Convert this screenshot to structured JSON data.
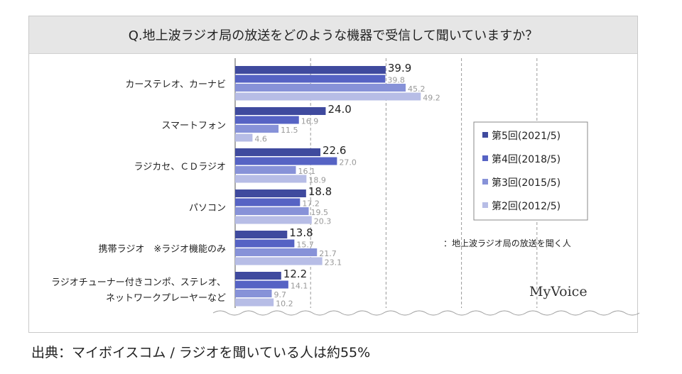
{
  "source": "出典：マイボイスコム / ラジオを聞いている人は約55%",
  "brand": "MyVoice",
  "colors": {
    "series": [
      "#3f4a9e",
      "#5663c4",
      "#8792d8",
      "#b7bde6"
    ],
    "label_first": "#222222",
    "label_rest": "#999999"
  },
  "chart_data": {
    "type": "bar",
    "orientation": "horizontal",
    "title": "Q.地上波ラジオ局の放送をどのような機器で受信して聞いていますか？",
    "categories": [
      "カーステレオ、カーナビ",
      "スマートフォン",
      "ラジカセ、ＣＤラジオ",
      "パソコン",
      "携帯ラジオ　※ラジオ機能のみ",
      "ラジオチューナー付きコンポ、ステレオ、\nネットワークプレーヤーなど"
    ],
    "series": [
      {
        "name": "第5回(2021/5)",
        "values": [
          39.9,
          24.0,
          22.6,
          18.8,
          13.8,
          12.2
        ]
      },
      {
        "name": "第4回(2018/5)",
        "values": [
          39.8,
          16.9,
          27.0,
          17.2,
          15.7,
          14.1
        ]
      },
      {
        "name": "第3回(2015/5)",
        "values": [
          45.2,
          11.5,
          16.1,
          19.5,
          21.7,
          9.7
        ]
      },
      {
        "name": "第2回(2012/5)",
        "values": [
          49.2,
          4.6,
          18.9,
          20.3,
          23.1,
          10.2
        ]
      }
    ],
    "xlim": [
      0,
      80
    ],
    "grid": true,
    "legend": "right",
    "note": "：地上波ラジオ局の放送を聞く人"
  }
}
